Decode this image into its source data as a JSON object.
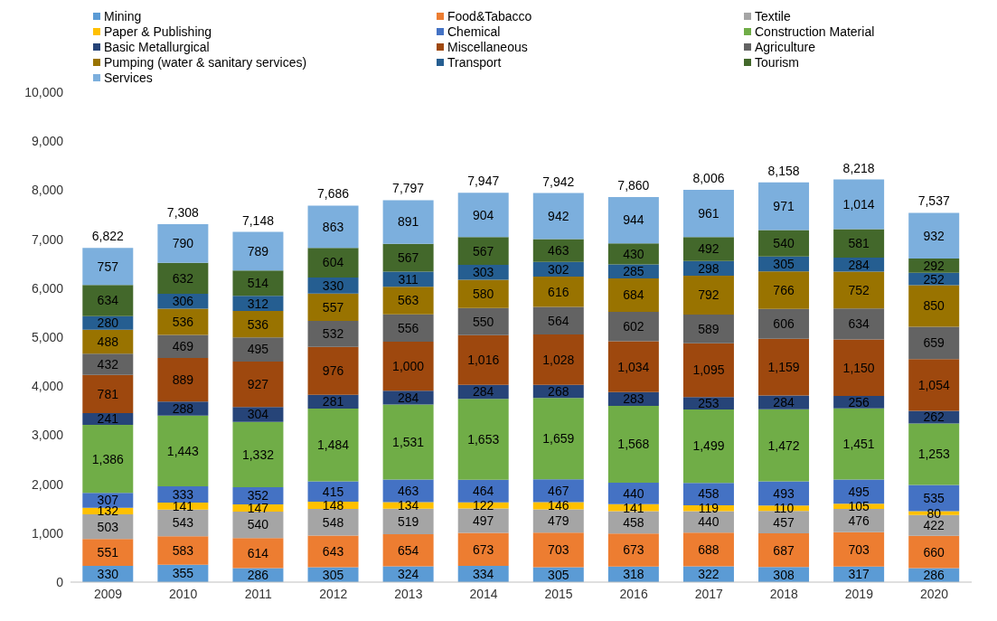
{
  "chart_data": {
    "type": "bar",
    "stacked": true,
    "legend": "top",
    "categories": [
      "2009",
      "2010",
      "2011",
      "2012",
      "2013",
      "2014",
      "2015",
      "2016",
      "2017",
      "2018",
      "2019",
      "2020"
    ],
    "ylim": [
      0,
      10000
    ],
    "yticks": [
      0,
      {
        "value": 1000,
        "label": "1,000"
      },
      {
        "value": 2000,
        "label": "2,000"
      },
      {
        "value": 3000,
        "label": "3,000"
      },
      {
        "value": 4000,
        "label": "4,000"
      },
      {
        "value": 5000,
        "label": "5,000"
      },
      {
        "value": 6000,
        "label": "6,000"
      },
      {
        "value": 7000,
        "label": "7,000"
      },
      {
        "value": 8000,
        "label": "8,000"
      },
      {
        "value": 9000,
        "label": "9,000"
      },
      {
        "value": 10000,
        "label": "10,000"
      }
    ],
    "series": [
      {
        "name": "Mining",
        "color": "#5b9bd5",
        "values": [
          330,
          355,
          286,
          305,
          324,
          334,
          305,
          318,
          322,
          308,
          317,
          286
        ],
        "value_labels": [
          "330",
          "355",
          "286",
          "305",
          "324",
          "334",
          "305",
          "318",
          "322",
          "308",
          "317",
          "286"
        ]
      },
      {
        "name": "Food&Tabacco",
        "color": "#ed7d31",
        "values": [
          551,
          583,
          614,
          643,
          654,
          673,
          703,
          673,
          688,
          687,
          703,
          660
        ],
        "value_labels": [
          "551",
          "583",
          "614",
          "643",
          "654",
          "673",
          "703",
          "673",
          "688",
          "687",
          "703",
          "660"
        ]
      },
      {
        "name": "Textile",
        "color": "#a5a5a5",
        "values": [
          503,
          543,
          540,
          548,
          519,
          497,
          479,
          458,
          440,
          457,
          476,
          422
        ],
        "value_labels": [
          "503",
          "543",
          "540",
          "548",
          "519",
          "497",
          "479",
          "458",
          "440",
          "457",
          "476",
          "422"
        ]
      },
      {
        "name": "Paper & Publishing",
        "color": "#ffc000",
        "values": [
          132,
          141,
          147,
          148,
          134,
          122,
          146,
          141,
          119,
          110,
          105,
          80
        ],
        "value_labels": [
          "132",
          "141",
          "147",
          "148",
          "134",
          "122",
          "146",
          "141",
          "119",
          "110",
          "105",
          "80"
        ]
      },
      {
        "name": "Chemical",
        "color": "#4472c4",
        "values": [
          307,
          333,
          352,
          415,
          463,
          464,
          467,
          440,
          458,
          493,
          495,
          535
        ],
        "value_labels": [
          "307",
          "333",
          "352",
          "415",
          "463",
          "464",
          "467",
          "440",
          "458",
          "493",
          "495",
          "535"
        ]
      },
      {
        "name": "Construction Material",
        "color": "#70ad47",
        "values": [
          1386,
          1443,
          1332,
          1484,
          1531,
          1653,
          1659,
          1568,
          1499,
          1472,
          1451,
          1253
        ],
        "value_labels": [
          "1,386",
          "1,443",
          "1,332",
          "1,484",
          "1,531",
          "1,653",
          "1,659",
          "1,568",
          "1,499",
          "1,472",
          "1,451",
          "1,253"
        ]
      },
      {
        "name": "Basic Metallurgical",
        "color": "#264478",
        "values": [
          241,
          288,
          304,
          281,
          284,
          284,
          268,
          283,
          253,
          284,
          256,
          262
        ],
        "value_labels": [
          "241",
          "288",
          "304",
          "281",
          "284",
          "284",
          "268",
          "283",
          "253",
          "284",
          "256",
          "262"
        ]
      },
      {
        "name": "Miscellaneous",
        "color": "#9e480e",
        "values": [
          781,
          889,
          927,
          976,
          1000,
          1016,
          1028,
          1034,
          1095,
          1159,
          1150,
          1054
        ],
        "value_labels": [
          "781",
          "889",
          "927",
          "976",
          "1,000",
          "1,016",
          "1,028",
          "1,034",
          "1,095",
          "1,159",
          "1,150",
          "1,054"
        ]
      },
      {
        "name": "Agriculture",
        "color": "#636363",
        "values": [
          432,
          469,
          495,
          532,
          556,
          550,
          564,
          602,
          589,
          606,
          634,
          659
        ],
        "value_labels": [
          "432",
          "469",
          "495",
          "532",
          "556",
          "550",
          "564",
          "602",
          "589",
          "606",
          "634",
          "659"
        ]
      },
      {
        "name": "Pumping (water & sanitary services)",
        "color": "#997300",
        "values": [
          488,
          536,
          536,
          557,
          563,
          580,
          616,
          684,
          792,
          766,
          752,
          850
        ],
        "value_labels": [
          "488",
          "536",
          "536",
          "557",
          "563",
          "580",
          "616",
          "684",
          "792",
          "766",
          "752",
          "850"
        ]
      },
      {
        "name": "Transport",
        "color": "#255e91",
        "values": [
          280,
          306,
          312,
          330,
          311,
          303,
          302,
          285,
          298,
          305,
          284,
          252
        ],
        "value_labels": [
          "280",
          "306",
          "312",
          "330",
          "311",
          "303",
          "302",
          "285",
          "298",
          "305",
          "284",
          "252"
        ]
      },
      {
        "name": "Tourism",
        "color": "#43682b",
        "values": [
          634,
          632,
          514,
          604,
          567,
          567,
          463,
          430,
          492,
          540,
          581,
          292
        ],
        "value_labels": [
          "634",
          "632",
          "514",
          "604",
          "567",
          "567",
          "463",
          "430",
          "492",
          "540",
          "581",
          "292"
        ]
      },
      {
        "name": "Services",
        "color": "#7cafdd",
        "values": [
          757,
          790,
          789,
          863,
          891,
          904,
          942,
          944,
          961,
          971,
          1014,
          932
        ],
        "value_labels": [
          "757",
          "790",
          "789",
          "863",
          "891",
          "904",
          "942",
          "944",
          "961",
          "971",
          "1,014",
          "932"
        ]
      }
    ],
    "totals": [
      "6,822",
      "7,308",
      "7,148",
      "7,686",
      "7,797",
      "7,947",
      "7,942",
      "7,860",
      "8,006",
      "8,158",
      "8,218",
      "7,537"
    ]
  }
}
